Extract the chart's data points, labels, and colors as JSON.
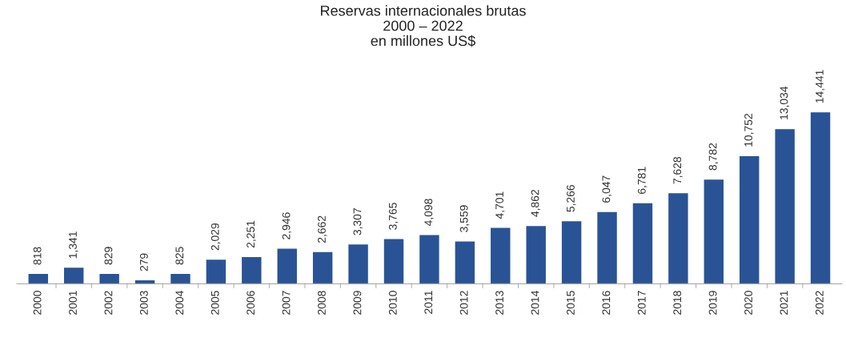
{
  "chart_data": {
    "type": "bar",
    "title": "Reservas internacionales brutas\n2000 – 2022\nen millones US$",
    "categories": [
      "2000",
      "2001",
      "2002",
      "2003",
      "2004",
      "2005",
      "2006",
      "2007",
      "2008",
      "2009",
      "2010",
      "2011",
      "2012",
      "2013",
      "2014",
      "2015",
      "2016",
      "2017",
      "2018",
      "2019",
      "2020",
      "2021",
      "2022"
    ],
    "values": [
      818,
      1341,
      829,
      279,
      825,
      2029,
      2251,
      2946,
      2662,
      3307,
      3765,
      4098,
      3559,
      4701,
      4862,
      5266,
      6047,
      6781,
      7628,
      8782,
      10752,
      13034,
      14441
    ],
    "value_labels": [
      "818",
      "1,341",
      "829",
      "279",
      "825",
      "2,029",
      "2,251",
      "2,946",
      "2,662",
      "3,307",
      "3,765",
      "4,098",
      "3,559",
      "4,701",
      "4,862",
      "5,266",
      "6,047",
      "6,781",
      "7,628",
      "8,782",
      "10,752",
      "13,034",
      "14,441"
    ],
    "color": "#2a5396",
    "tick_labels": "x",
    "grid": false,
    "legend": false
  }
}
